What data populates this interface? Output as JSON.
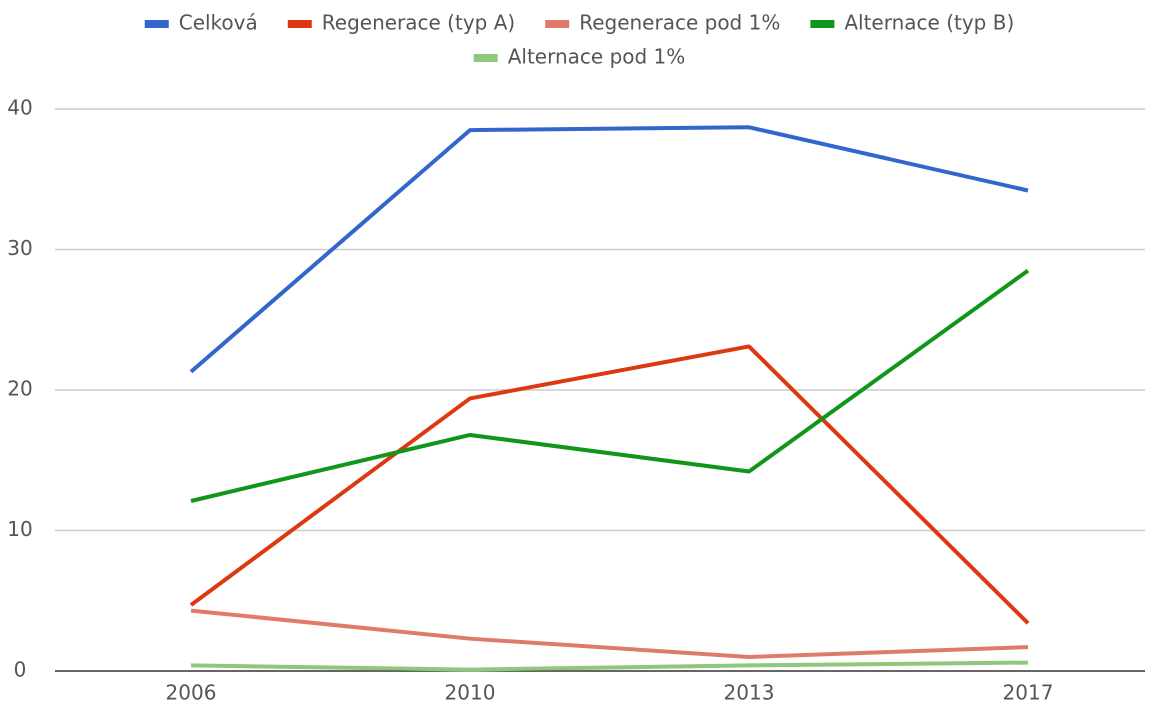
{
  "chart_data": {
    "type": "line",
    "categories": [
      "2006",
      "2010",
      "2013",
      "2017"
    ],
    "series": [
      {
        "name": "Celková",
        "color": "#3366cc",
        "values": [
          21.3,
          38.5,
          38.7,
          34.2
        ]
      },
      {
        "name": "Regenerace (typ A)",
        "color": "#dc3912",
        "values": [
          4.7,
          19.4,
          23.1,
          3.4
        ]
      },
      {
        "name": "Regenerace pod 1%",
        "color": "#e07b6b",
        "values": [
          4.3,
          2.3,
          1.0,
          1.7
        ]
      },
      {
        "name": "Alternace (typ B)",
        "color": "#109618",
        "values": [
          12.1,
          16.8,
          14.2,
          28.5
        ]
      },
      {
        "name": "Alternace pod 1%",
        "color": "#8dc87c",
        "values": [
          0.4,
          0.1,
          0.4,
          0.6
        ]
      }
    ],
    "ylim": [
      0,
      40
    ],
    "yticks": [
      0,
      10,
      20,
      30,
      40
    ],
    "grid": true,
    "legend": "top"
  }
}
